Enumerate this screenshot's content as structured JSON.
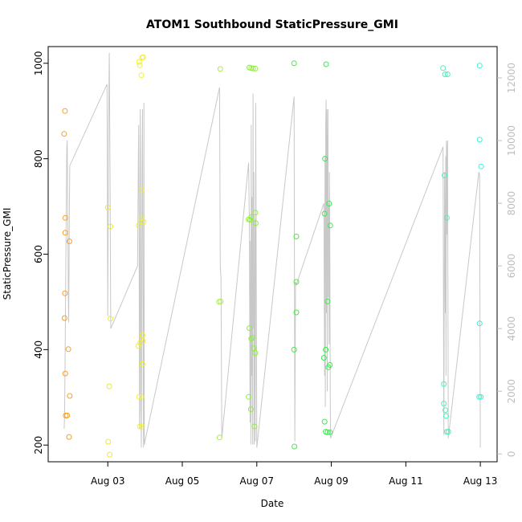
{
  "chart_data": {
    "type": "scatter",
    "title": "ATOM1 Southbound StaticPressure_GMI",
    "xlabel": "Date",
    "ylabel": "StaticPressure_GMI",
    "x_ticks": [
      {
        "day": 3,
        "label": "Aug 03"
      },
      {
        "day": 5,
        "label": "Aug 05"
      },
      {
        "day": 7,
        "label": "Aug 07"
      },
      {
        "day": 9,
        "label": "Aug 09"
      },
      {
        "day": 11,
        "label": "Aug 11"
      },
      {
        "day": 13,
        "label": "Aug 13"
      }
    ],
    "xlim": [
      1.4,
      13.45
    ],
    "ylim": [
      165,
      1035
    ],
    "y_ticks": [
      200,
      400,
      600,
      800,
      1000
    ],
    "y2lim": [
      -250,
      13000
    ],
    "y2_ticks": [
      0,
      2000,
      4000,
      6000,
      8000,
      10000,
      12000
    ],
    "line_color": "#c8c8c8",
    "points": [
      {
        "x": 1.85,
        "y": 900,
        "c": "#f5a033"
      },
      {
        "x": 1.83,
        "y": 852,
        "c": "#f5a033"
      },
      {
        "x": 1.86,
        "y": 676,
        "c": "#f5a033"
      },
      {
        "x": 1.86,
        "y": 645,
        "c": "#f5a033"
      },
      {
        "x": 1.97,
        "y": 627,
        "c": "#f5a033"
      },
      {
        "x": 1.85,
        "y": 518,
        "c": "#f5a033"
      },
      {
        "x": 1.84,
        "y": 466,
        "c": "#f5a033"
      },
      {
        "x": 1.94,
        "y": 401,
        "c": "#f5a033"
      },
      {
        "x": 1.86,
        "y": 350,
        "c": "#f5a033"
      },
      {
        "x": 1.98,
        "y": 303,
        "c": "#f5a033"
      },
      {
        "x": 1.87,
        "y": 262,
        "c": "#f5a033"
      },
      {
        "x": 1.91,
        "y": 262,
        "c": "#f5a033"
      },
      {
        "x": 1.96,
        "y": 217,
        "c": "#f5a033"
      },
      {
        "x": 3.0,
        "y": 698,
        "c": "#e8ea3c"
      },
      {
        "x": 3.07,
        "y": 658,
        "c": "#e8ea3c"
      },
      {
        "x": 3.07,
        "y": 465,
        "c": "#e8ea3c"
      },
      {
        "x": 3.04,
        "y": 323,
        "c": "#e8ea3c"
      },
      {
        "x": 3.01,
        "y": 207,
        "c": "#e8ea3c"
      },
      {
        "x": 3.05,
        "y": 180,
        "c": "#e8ea3c"
      },
      {
        "x": 3.84,
        "y": 1003,
        "c": "#f1f030"
      },
      {
        "x": 3.92,
        "y": 1012,
        "c": "#f1f030"
      },
      {
        "x": 3.95,
        "y": 1013,
        "c": "#f1f030"
      },
      {
        "x": 3.86,
        "y": 996,
        "c": "#f1f030"
      },
      {
        "x": 3.9,
        "y": 975,
        "c": "#f1f030"
      },
      {
        "x": 3.91,
        "y": 734,
        "c": "#f1f030"
      },
      {
        "x": 3.9,
        "y": 675,
        "c": "#f1f030"
      },
      {
        "x": 3.96,
        "y": 668,
        "c": "#f1f030"
      },
      {
        "x": 3.83,
        "y": 660,
        "c": "#f1f030"
      },
      {
        "x": 3.93,
        "y": 430,
        "c": "#f1f030"
      },
      {
        "x": 3.94,
        "y": 418,
        "c": "#f1f030"
      },
      {
        "x": 3.87,
        "y": 414,
        "c": "#f1f030"
      },
      {
        "x": 3.82,
        "y": 408,
        "c": "#f1f030"
      },
      {
        "x": 3.93,
        "y": 370,
        "c": "#f1f030"
      },
      {
        "x": 3.84,
        "y": 301,
        "c": "#f1f030"
      },
      {
        "x": 3.91,
        "y": 301,
        "c": "#f1f030"
      },
      {
        "x": 3.86,
        "y": 239,
        "c": "#f1f030"
      },
      {
        "x": 3.92,
        "y": 239,
        "c": "#f1f030"
      },
      {
        "x": 6.02,
        "y": 988,
        "c": "#a8f040"
      },
      {
        "x": 5.99,
        "y": 500,
        "c": "#a8f040"
      },
      {
        "x": 6.03,
        "y": 501,
        "c": "#a8f040"
      },
      {
        "x": 6.0,
        "y": 216,
        "c": "#a8f040"
      },
      {
        "x": 6.8,
        "y": 991,
        "c": "#8ef03a"
      },
      {
        "x": 6.85,
        "y": 990,
        "c": "#8ef03a"
      },
      {
        "x": 6.9,
        "y": 989,
        "c": "#8ef03a"
      },
      {
        "x": 6.96,
        "y": 989,
        "c": "#8ef03a"
      },
      {
        "x": 6.96,
        "y": 687,
        "c": "#8ef03a"
      },
      {
        "x": 6.86,
        "y": 678,
        "c": "#8ef03a"
      },
      {
        "x": 6.78,
        "y": 673,
        "c": "#8ef03a"
      },
      {
        "x": 6.82,
        "y": 672,
        "c": "#8ef03a"
      },
      {
        "x": 6.97,
        "y": 665,
        "c": "#8ef03a"
      },
      {
        "x": 6.8,
        "y": 445,
        "c": "#8ef03a"
      },
      {
        "x": 6.9,
        "y": 425,
        "c": "#8ef03a"
      },
      {
        "x": 6.85,
        "y": 423,
        "c": "#8ef03a"
      },
      {
        "x": 6.92,
        "y": 403,
        "c": "#8ef03a"
      },
      {
        "x": 6.96,
        "y": 393,
        "c": "#8ef03a"
      },
      {
        "x": 6.78,
        "y": 301,
        "c": "#8ef03a"
      },
      {
        "x": 6.84,
        "y": 275,
        "c": "#8ef03a"
      },
      {
        "x": 6.94,
        "y": 239,
        "c": "#8ef03a"
      },
      {
        "x": 8.0,
        "y": 1000,
        "c": "#4ee84a"
      },
      {
        "x": 8.06,
        "y": 637,
        "c": "#4ee84a"
      },
      {
        "x": 8.06,
        "y": 542,
        "c": "#4ee84a"
      },
      {
        "x": 8.06,
        "y": 478,
        "c": "#4ee84a"
      },
      {
        "x": 8.0,
        "y": 400,
        "c": "#4ee84a"
      },
      {
        "x": 8.01,
        "y": 197,
        "c": "#4ee84a"
      },
      {
        "x": 8.86,
        "y": 998,
        "c": "#3ee853"
      },
      {
        "x": 8.83,
        "y": 800,
        "c": "#3ee853"
      },
      {
        "x": 8.94,
        "y": 706,
        "c": "#3ee853"
      },
      {
        "x": 8.82,
        "y": 685,
        "c": "#3ee853"
      },
      {
        "x": 8.97,
        "y": 660,
        "c": "#3ee853"
      },
      {
        "x": 8.9,
        "y": 501,
        "c": "#3ee853"
      },
      {
        "x": 8.85,
        "y": 400,
        "c": "#3ee853"
      },
      {
        "x": 8.8,
        "y": 383,
        "c": "#3ee853"
      },
      {
        "x": 8.96,
        "y": 368,
        "c": "#3ee853"
      },
      {
        "x": 8.92,
        "y": 363,
        "c": "#3ee853"
      },
      {
        "x": 8.82,
        "y": 249,
        "c": "#3ee853"
      },
      {
        "x": 8.85,
        "y": 228,
        "c": "#3ee853"
      },
      {
        "x": 8.9,
        "y": 227,
        "c": "#3ee853"
      },
      {
        "x": 8.96,
        "y": 227,
        "c": "#3ee853"
      },
      {
        "x": 12.0,
        "y": 990,
        "c": "#4af0bc"
      },
      {
        "x": 12.05,
        "y": 977,
        "c": "#4af0bc"
      },
      {
        "x": 12.12,
        "y": 977,
        "c": "#4af0bc"
      },
      {
        "x": 12.04,
        "y": 765,
        "c": "#4af0bc"
      },
      {
        "x": 12.1,
        "y": 676,
        "c": "#4af0bc"
      },
      {
        "x": 12.02,
        "y": 328,
        "c": "#4af0bc"
      },
      {
        "x": 12.02,
        "y": 287,
        "c": "#4af0bc"
      },
      {
        "x": 12.06,
        "y": 273,
        "c": "#4af0bc"
      },
      {
        "x": 12.08,
        "y": 261,
        "c": "#4af0bc"
      },
      {
        "x": 12.1,
        "y": 228,
        "c": "#4af0bc"
      },
      {
        "x": 12.14,
        "y": 228,
        "c": "#4af0bc"
      },
      {
        "x": 12.98,
        "y": 995,
        "c": "#3ef0d6"
      },
      {
        "x": 12.98,
        "y": 840,
        "c": "#3ef0d6"
      },
      {
        "x": 13.02,
        "y": 784,
        "c": "#3ef0d6"
      },
      {
        "x": 12.98,
        "y": 455,
        "c": "#3ef0d6"
      },
      {
        "x": 12.97,
        "y": 301,
        "c": "#3ef0d6"
      },
      {
        "x": 13.01,
        "y": 301,
        "c": "#3ef0d6"
      }
    ],
    "altitude_line": [
      [
        1.83,
        800
      ],
      [
        1.84,
        1200
      ],
      [
        1.85,
        2500
      ],
      [
        1.86,
        3800
      ],
      [
        1.87,
        5500
      ],
      [
        1.88,
        7200
      ],
      [
        1.89,
        8500
      ],
      [
        1.9,
        9800
      ],
      [
        1.91,
        10000
      ],
      [
        1.92,
        8500
      ],
      [
        1.93,
        7000
      ],
      [
        1.94,
        5000
      ],
      [
        1.95,
        4200
      ],
      [
        1.96,
        6000
      ],
      [
        1.97,
        7800
      ],
      [
        1.98,
        9200
      ],
      [
        2.98,
        11800
      ],
      [
        3.0,
        4400
      ],
      [
        3.02,
        10500
      ],
      [
        3.04,
        12800
      ],
      [
        3.06,
        9000
      ],
      [
        3.08,
        4000
      ],
      [
        3.8,
        6000
      ],
      [
        3.82,
        9500
      ],
      [
        3.83,
        10500
      ],
      [
        3.84,
        7500
      ],
      [
        3.85,
        800
      ],
      [
        3.86,
        1800
      ],
      [
        3.87,
        11000
      ],
      [
        3.88,
        9500
      ],
      [
        3.89,
        1500
      ],
      [
        3.9,
        200
      ],
      [
        3.91,
        4500
      ],
      [
        3.92,
        9000
      ],
      [
        3.93,
        11000
      ],
      [
        3.94,
        7000
      ],
      [
        3.95,
        2000
      ],
      [
        3.96,
        200
      ],
      [
        3.97,
        11200
      ],
      [
        3.98,
        300
      ],
      [
        6.0,
        11700
      ],
      [
        6.02,
        6000
      ],
      [
        6.04,
        5600
      ],
      [
        6.06,
        500
      ],
      [
        6.78,
        9300
      ],
      [
        6.8,
        7400
      ],
      [
        6.82,
        1000
      ],
      [
        6.83,
        6800
      ],
      [
        6.84,
        300
      ],
      [
        6.85,
        10500
      ],
      [
        6.86,
        2500
      ],
      [
        6.87,
        8200
      ],
      [
        6.88,
        1500
      ],
      [
        6.89,
        300
      ],
      [
        6.9,
        11500
      ],
      [
        6.91,
        4000
      ],
      [
        6.92,
        9000
      ],
      [
        6.93,
        300
      ],
      [
        6.94,
        3500
      ],
      [
        6.95,
        7500
      ],
      [
        6.96,
        400
      ],
      [
        6.97,
        11200
      ],
      [
        7.0,
        200
      ],
      [
        8.0,
        11400
      ],
      [
        8.02,
        400
      ],
      [
        8.04,
        5500
      ],
      [
        8.06,
        5400
      ],
      [
        8.8,
        8000
      ],
      [
        8.82,
        2500
      ],
      [
        8.83,
        9500
      ],
      [
        8.84,
        1500
      ],
      [
        8.85,
        10500
      ],
      [
        8.86,
        11300
      ],
      [
        8.87,
        4500
      ],
      [
        8.88,
        11000
      ],
      [
        8.89,
        2000
      ],
      [
        8.9,
        9500
      ],
      [
        8.91,
        11000
      ],
      [
        8.92,
        5000
      ],
      [
        8.93,
        8000
      ],
      [
        8.94,
        3500
      ],
      [
        8.95,
        9000
      ],
      [
        8.96,
        7000
      ],
      [
        8.97,
        2000
      ],
      [
        8.98,
        500
      ],
      [
        12.0,
        9800
      ],
      [
        12.02,
        600
      ],
      [
        12.04,
        9000
      ],
      [
        12.06,
        4500
      ],
      [
        12.07,
        9500
      ],
      [
        12.08,
        2500
      ],
      [
        12.09,
        10000
      ],
      [
        12.1,
        7000
      ],
      [
        12.11,
        9700
      ],
      [
        12.12,
        10000
      ],
      [
        12.14,
        500
      ],
      [
        12.96,
        9000
      ],
      [
        12.98,
        8900
      ],
      [
        13.0,
        200
      ]
    ]
  }
}
